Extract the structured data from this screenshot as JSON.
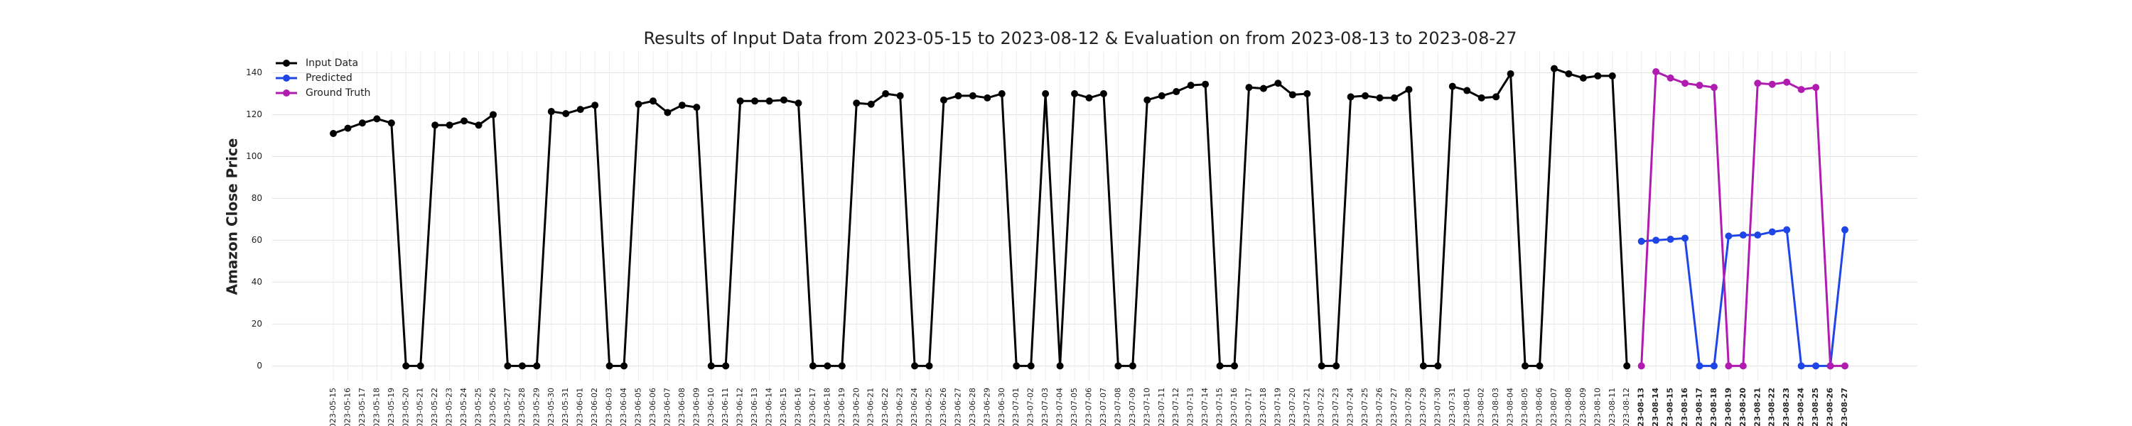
{
  "chart_data": {
    "type": "line",
    "title": "Results of Input Data from 2023-05-15 to 2023-08-12 & Evaluation on from 2023-08-13 to 2023-08-27",
    "y_label": "Amazon Close Price",
    "x": [
      "2023-05-15",
      "2023-05-16",
      "2023-05-17",
      "2023-05-18",
      "2023-05-19",
      "2023-05-20",
      "2023-05-21",
      "2023-05-22",
      "2023-05-23",
      "2023-05-24",
      "2023-05-25",
      "2023-05-26",
      "2023-05-27",
      "2023-05-28",
      "2023-05-29",
      "2023-05-30",
      "2023-05-31",
      "2023-06-01",
      "2023-06-02",
      "2023-06-03",
      "2023-06-04",
      "2023-06-05",
      "2023-06-06",
      "2023-06-07",
      "2023-06-08",
      "2023-06-09",
      "2023-06-10",
      "2023-06-11",
      "2023-06-12",
      "2023-06-13",
      "2023-06-14",
      "2023-06-15",
      "2023-06-16",
      "2023-06-17",
      "2023-06-18",
      "2023-06-19",
      "2023-06-20",
      "2023-06-21",
      "2023-06-22",
      "2023-06-23",
      "2023-06-24",
      "2023-06-25",
      "2023-06-26",
      "2023-06-27",
      "2023-06-28",
      "2023-06-29",
      "2023-06-30",
      "2023-07-01",
      "2023-07-02",
      "2023-07-03",
      "2023-07-04",
      "2023-07-05",
      "2023-07-06",
      "2023-07-07",
      "2023-07-08",
      "2023-07-09",
      "2023-07-10",
      "2023-07-11",
      "2023-07-12",
      "2023-07-13",
      "2023-07-14",
      "2023-07-15",
      "2023-07-16",
      "2023-07-17",
      "2023-07-18",
      "2023-07-19",
      "2023-07-20",
      "2023-07-21",
      "2023-07-22",
      "2023-07-23",
      "2023-07-24",
      "2023-07-25",
      "2023-07-26",
      "2023-07-27",
      "2023-07-28",
      "2023-07-29",
      "2023-07-30",
      "2023-07-31",
      "2023-08-01",
      "2023-08-02",
      "2023-08-03",
      "2023-08-04",
      "2023-08-05",
      "2023-08-06",
      "2023-08-07",
      "2023-08-08",
      "2023-08-09",
      "2023-08-10",
      "2023-08-11",
      "2023-08-12",
      "2023-08-13",
      "2023-08-14",
      "2023-08-15",
      "2023-08-16",
      "2023-08-17",
      "2023-08-18",
      "2023-08-19",
      "2023-08-20",
      "2023-08-21",
      "2023-08-22",
      "2023-08-23",
      "2023-08-24",
      "2023-08-25",
      "2023-08-26",
      "2023-08-27"
    ],
    "series": [
      {
        "name": "Input Data",
        "color": "#000000",
        "values": [
          111,
          113.5,
          116,
          118,
          116,
          0,
          0,
          115,
          115,
          117,
          115,
          120,
          0,
          0,
          0,
          121.5,
          120.5,
          122.5,
          124.5,
          0,
          0,
          125,
          126.5,
          121,
          124.5,
          123.5,
          0,
          0,
          126.5,
          126.5,
          126.5,
          127,
          125.5,
          0,
          0,
          0,
          125.5,
          125,
          130,
          129,
          0,
          0,
          127,
          129,
          129,
          128,
          130,
          0,
          0,
          130,
          0,
          130,
          128,
          130,
          0,
          0,
          127,
          129,
          131,
          134,
          134.5,
          0,
          0,
          133,
          132.5,
          135,
          129.5,
          130,
          0,
          0,
          128.5,
          129,
          128,
          128,
          132,
          0,
          0,
          133.5,
          131.5,
          128,
          128.5,
          139.5,
          0,
          0,
          142,
          139.5,
          137.5,
          138.5,
          138.5,
          0,
          null,
          null,
          null,
          null,
          null,
          null,
          null,
          null,
          null,
          null,
          null,
          null,
          null,
          null,
          null
        ]
      },
      {
        "name": "Predicted",
        "color": "#1f45e6",
        "values": [
          null,
          null,
          null,
          null,
          null,
          null,
          null,
          null,
          null,
          null,
          null,
          null,
          null,
          null,
          null,
          null,
          null,
          null,
          null,
          null,
          null,
          null,
          null,
          null,
          null,
          null,
          null,
          null,
          null,
          null,
          null,
          null,
          null,
          null,
          null,
          null,
          null,
          null,
          null,
          null,
          null,
          null,
          null,
          null,
          null,
          null,
          null,
          null,
          null,
          null,
          null,
          null,
          null,
          null,
          null,
          null,
          null,
          null,
          null,
          null,
          null,
          null,
          null,
          null,
          null,
          null,
          null,
          null,
          null,
          null,
          null,
          null,
          null,
          null,
          null,
          null,
          null,
          null,
          null,
          null,
          null,
          null,
          null,
          null,
          null,
          null,
          null,
          null,
          null,
          null,
          59.5,
          60,
          60.5,
          61,
          0,
          0,
          62,
          62.5,
          62.5,
          64,
          65,
          0,
          0,
          0,
          65
        ]
      },
      {
        "name": "Ground Truth",
        "color": "#b01cb0",
        "values": [
          null,
          null,
          null,
          null,
          null,
          null,
          null,
          null,
          null,
          null,
          null,
          null,
          null,
          null,
          null,
          null,
          null,
          null,
          null,
          null,
          null,
          null,
          null,
          null,
          null,
          null,
          null,
          null,
          null,
          null,
          null,
          null,
          null,
          null,
          null,
          null,
          null,
          null,
          null,
          null,
          null,
          null,
          null,
          null,
          null,
          null,
          null,
          null,
          null,
          null,
          null,
          null,
          null,
          null,
          null,
          null,
          null,
          null,
          null,
          null,
          null,
          null,
          null,
          null,
          null,
          null,
          null,
          null,
          null,
          null,
          null,
          null,
          null,
          null,
          null,
          null,
          null,
          null,
          null,
          null,
          null,
          null,
          null,
          null,
          null,
          null,
          null,
          null,
          null,
          null,
          0,
          140.5,
          137.5,
          135,
          134,
          133,
          0,
          0,
          135,
          134.5,
          135.5,
          132,
          133,
          0,
          0
        ]
      }
    ],
    "ylim": [
      -7,
      150
    ],
    "yticks": [
      0,
      20,
      40,
      60,
      80,
      100,
      120,
      140
    ],
    "grid": true,
    "legend": "upper left"
  }
}
